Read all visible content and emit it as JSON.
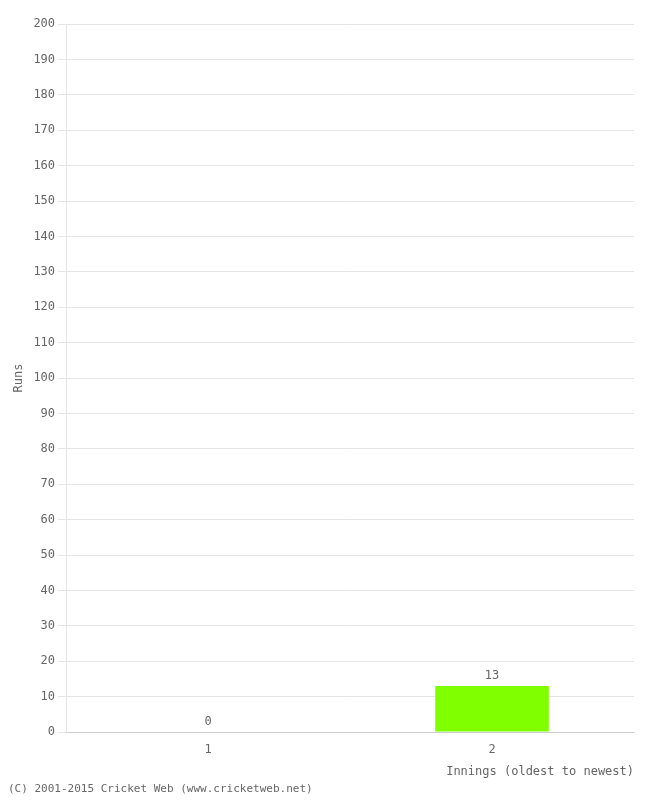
{
  "chart_data": {
    "type": "bar",
    "xlabel": "Innings (oldest to newest)",
    "ylabel": "Runs",
    "categories": [
      1,
      2
    ],
    "values": [
      0,
      13
    ],
    "color": "#7fff00",
    "ylim": [
      0,
      200
    ],
    "yticks": [
      0,
      10,
      20,
      30,
      40,
      50,
      60,
      70,
      80,
      90,
      100,
      110,
      120,
      130,
      140,
      150,
      160,
      170,
      180,
      190,
      200
    ],
    "grid": true,
    "data_labels": true,
    "footer": "(C) 2001-2015 Cricket Web (www.cricketweb.net)"
  }
}
